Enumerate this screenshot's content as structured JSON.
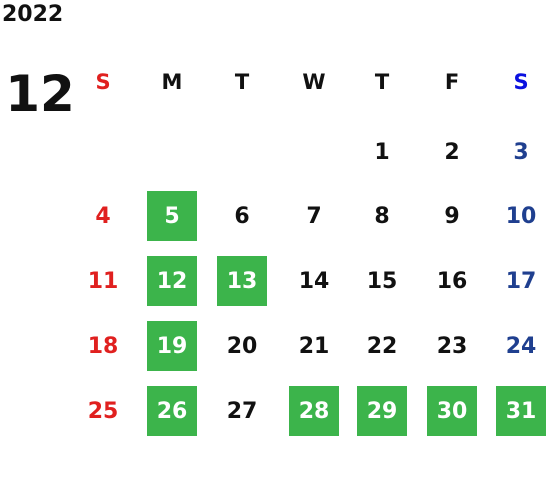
{
  "year": 2022,
  "month": 12,
  "weekdays": [
    "S",
    "M",
    "T",
    "W",
    "T",
    "F",
    "S"
  ],
  "weeks": [
    [
      null,
      null,
      null,
      null,
      {
        "day": 1,
        "highlighted": false
      },
      {
        "day": 2,
        "highlighted": false
      },
      {
        "day": 3,
        "highlighted": false
      }
    ],
    [
      {
        "day": 4,
        "highlighted": false
      },
      {
        "day": 5,
        "highlighted": true
      },
      {
        "day": 6,
        "highlighted": false
      },
      {
        "day": 7,
        "highlighted": false
      },
      {
        "day": 8,
        "highlighted": false
      },
      {
        "day": 9,
        "highlighted": false
      },
      {
        "day": 10,
        "highlighted": false
      }
    ],
    [
      {
        "day": 11,
        "highlighted": false
      },
      {
        "day": 12,
        "highlighted": true
      },
      {
        "day": 13,
        "highlighted": true
      },
      {
        "day": 14,
        "highlighted": false
      },
      {
        "day": 15,
        "highlighted": false
      },
      {
        "day": 16,
        "highlighted": false
      },
      {
        "day": 17,
        "highlighted": false
      }
    ],
    [
      {
        "day": 18,
        "highlighted": false
      },
      {
        "day": 19,
        "highlighted": true
      },
      {
        "day": 20,
        "highlighted": false
      },
      {
        "day": 21,
        "highlighted": false
      },
      {
        "day": 22,
        "highlighted": false
      },
      {
        "day": 23,
        "highlighted": false
      },
      {
        "day": 24,
        "highlighted": false
      }
    ],
    [
      {
        "day": 25,
        "highlighted": false
      },
      {
        "day": 26,
        "highlighted": true
      },
      {
        "day": 27,
        "highlighted": false
      },
      {
        "day": 28,
        "highlighted": true
      },
      {
        "day": 29,
        "highlighted": true
      },
      {
        "day": 30,
        "highlighted": true
      },
      {
        "day": 31,
        "highlighted": true
      }
    ]
  ]
}
